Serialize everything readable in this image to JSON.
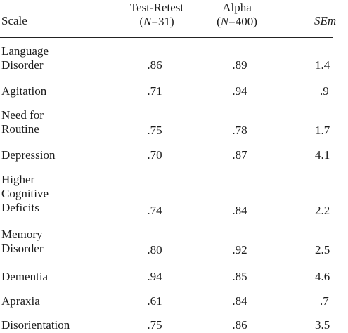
{
  "table": {
    "headers": {
      "scale": "Scale",
      "test_retest": {
        "line1": "Test-Retest",
        "line2_pre": "(",
        "line2_n": "N",
        "line2_post": "=31)"
      },
      "alpha": {
        "line1": "Alpha",
        "line2_pre": "(",
        "line2_n": "N",
        "line2_post": "=400)"
      },
      "sem": "SEm"
    },
    "rows": [
      {
        "label_lines": [
          "Language",
          "Disorder"
        ],
        "test_retest": ".86",
        "alpha": ".89",
        "sem": "1.4"
      },
      {
        "label_lines": [
          "Agitation"
        ],
        "test_retest": ".71",
        "alpha": ".94",
        "sem": ".9"
      },
      {
        "label_lines": [
          "Need for",
          "Routine"
        ],
        "test_retest": ".75",
        "alpha": ".78",
        "sem": "1.7"
      },
      {
        "label_lines": [
          "Depression"
        ],
        "test_retest": ".70",
        "alpha": ".87",
        "sem": "4.1"
      },
      {
        "label_lines": [
          "Higher",
          "Cognitive",
          "Deficits"
        ],
        "test_retest": ".74",
        "alpha": ".84",
        "sem": "2.2"
      },
      {
        "label_lines": [
          "Memory",
          "Disorder"
        ],
        "test_retest": ".80",
        "alpha": ".92",
        "sem": "2.5"
      },
      {
        "label_lines": [
          "Dementia"
        ],
        "test_retest": ".94",
        "alpha": ".85",
        "sem": "4.6"
      },
      {
        "label_lines": [
          "Apraxia"
        ],
        "test_retest": ".61",
        "alpha": ".84",
        "sem": ".7"
      },
      {
        "label_lines": [
          "Disorientation"
        ],
        "test_retest": ".75",
        "alpha": ".86",
        "sem": "3.5"
      }
    ]
  }
}
